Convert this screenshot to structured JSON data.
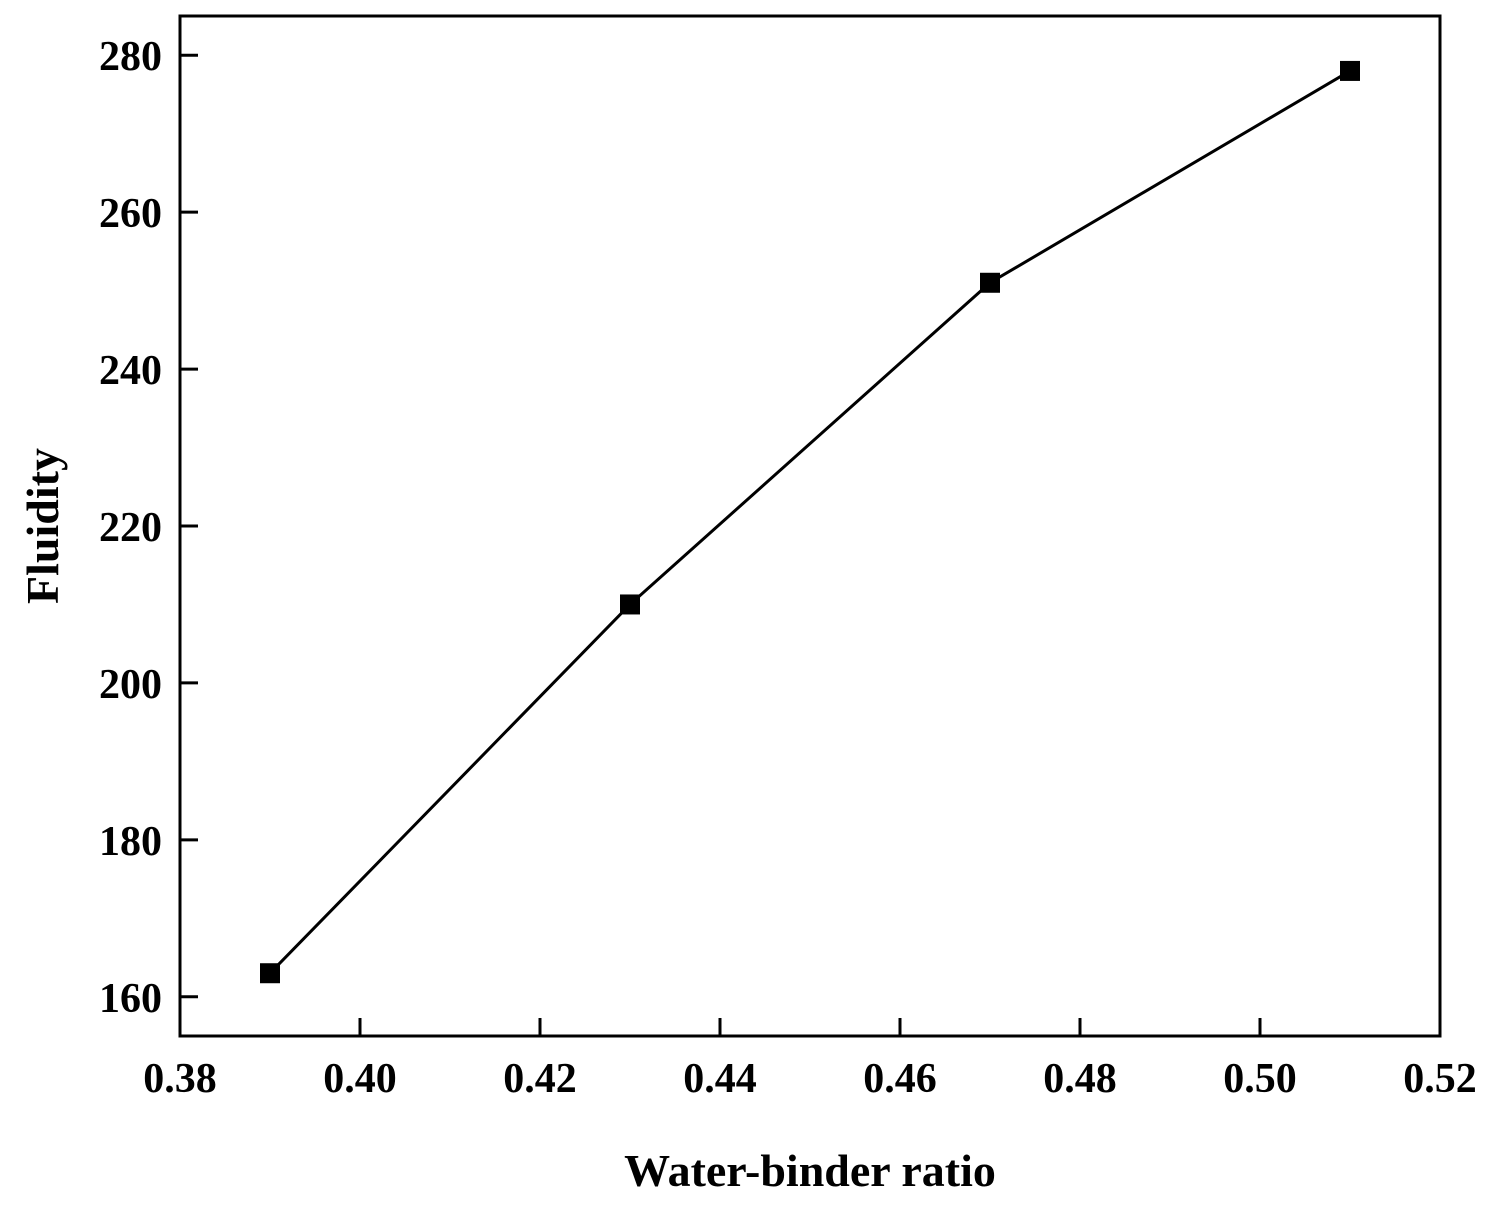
{
  "chart_data": {
    "type": "line",
    "title": "",
    "xlabel": "Water-binder ratio",
    "ylabel": "Fluidity",
    "xlim": [
      0.38,
      0.52
    ],
    "ylim": [
      155,
      285
    ],
    "xticks": [
      0.38,
      0.4,
      0.42,
      0.44,
      0.46,
      0.48,
      0.5,
      0.52
    ],
    "xtick_labels": [
      "0.38",
      "0.40",
      "0.42",
      "0.44",
      "0.46",
      "0.48",
      "0.50",
      "0.52"
    ],
    "yticks": [
      160,
      180,
      200,
      220,
      240,
      260,
      280
    ],
    "ytick_labels": [
      "160",
      "180",
      "200",
      "220",
      "240",
      "260",
      "280"
    ],
    "grid": false,
    "legend": false,
    "series": [
      {
        "marker": "square",
        "color": "#000000",
        "x": [
          0.39,
          0.43,
          0.47,
          0.51
        ],
        "y": [
          163,
          210,
          251,
          278
        ]
      }
    ]
  }
}
